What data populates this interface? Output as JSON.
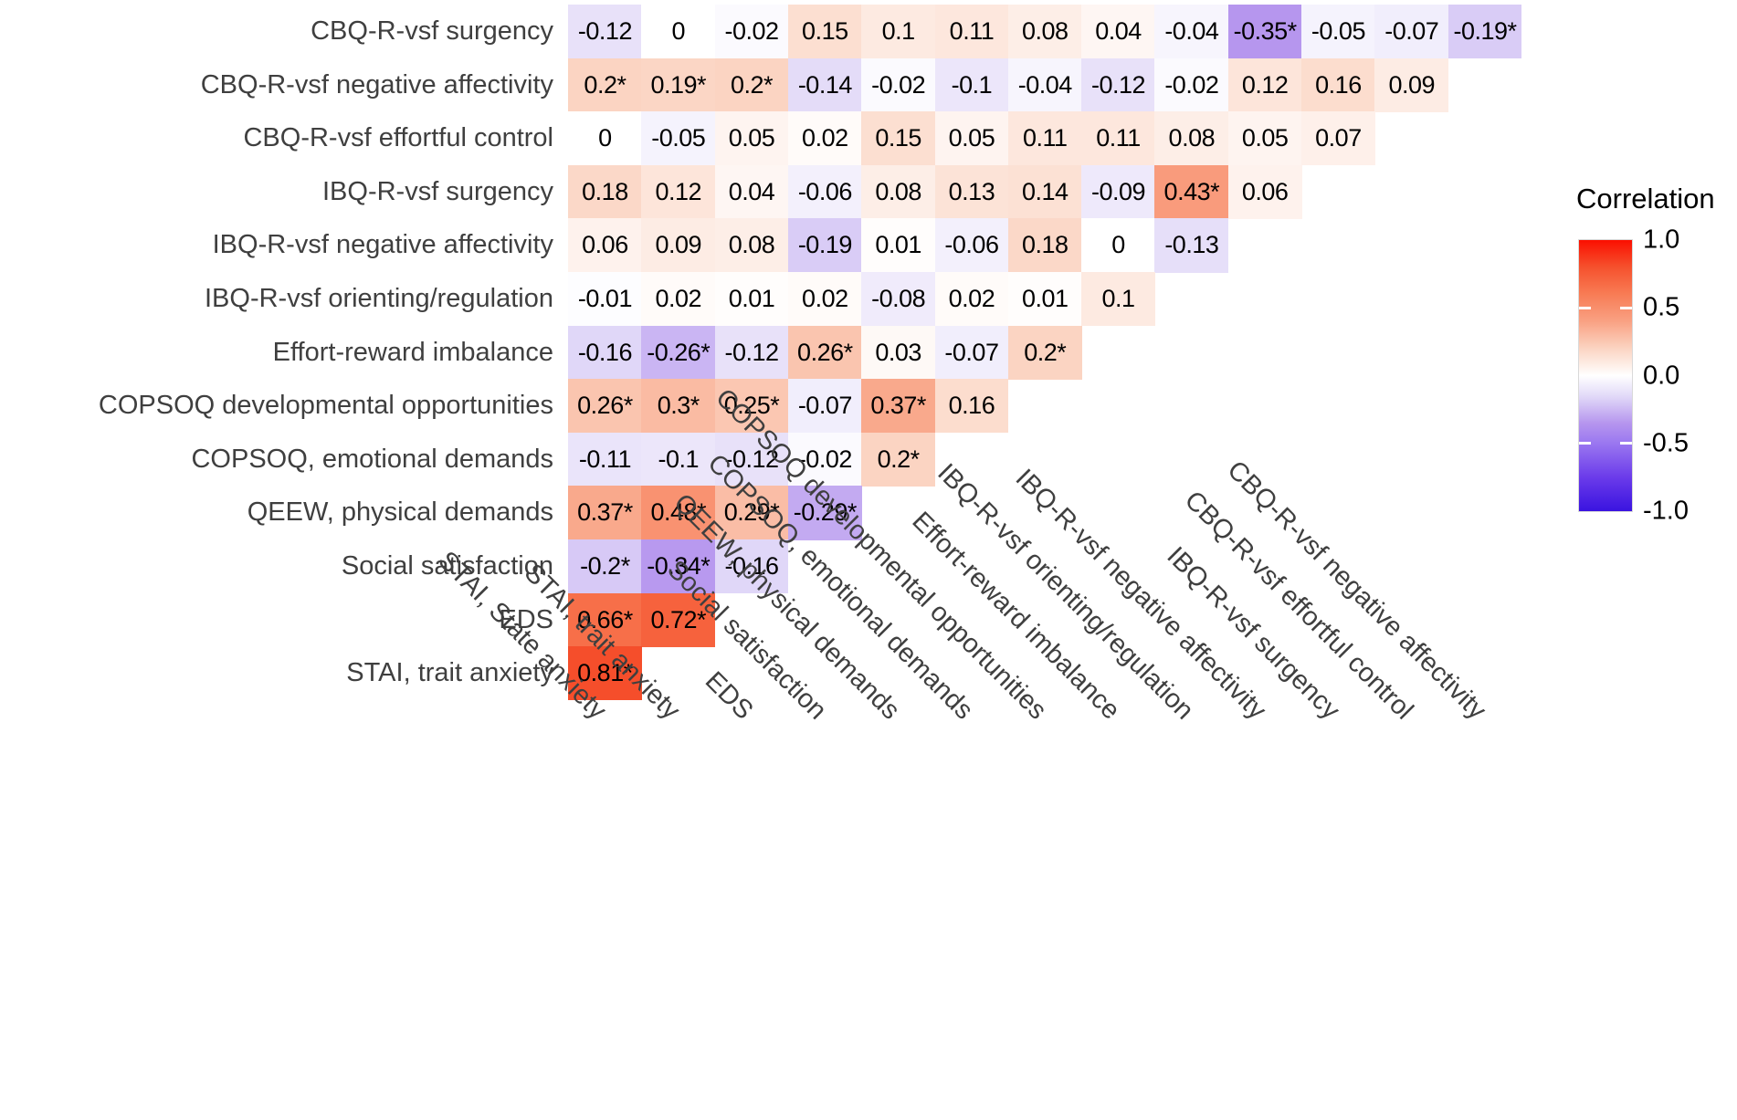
{
  "legend": {
    "title": "Correlation",
    "tick_labels": [
      "1.0",
      "0.5",
      "0.0",
      "-0.5",
      "-1.0"
    ],
    "accent_high": "#fb0f00",
    "accent_zero": "#ffffff",
    "accent_low": "#3a13e0"
  },
  "chart_data": {
    "type": "heatmap",
    "subtype": "lower-triangular correlation matrix",
    "colorbar_title": "Correlation",
    "colorbar_range": [
      -1.0,
      1.0
    ],
    "significance_marker": "* denotes values displayed with an asterisk",
    "columns": [
      "STAI, State anxiety",
      "STAI, trait anxiety",
      "EDS",
      "Social satisfaction",
      "QEEW, physical demands",
      "COPSOQ, emotional demands",
      "COPSOQ developmental opportunities",
      "Effort-reward imbalance",
      "IBQ-R-vsf orienting/regulation",
      "IBQ-R-vsf negative affectivity",
      "IBQ-R-vsf surgency",
      "CBQ-R-vsf effortful control",
      "CBQ-R-vsf negative affectivity"
    ],
    "rows": [
      {
        "label": "CBQ-R-vsf surgency",
        "values": [
          "-0.12",
          "0",
          "-0.02",
          "0.15",
          "0.1",
          "0.11",
          "0.08",
          "0.04",
          "-0.04",
          "-0.35*",
          "-0.05",
          "-0.07",
          "-0.19*"
        ]
      },
      {
        "label": "CBQ-R-vsf negative affectivity",
        "values": [
          "0.2*",
          "0.19*",
          "0.2*",
          "-0.14",
          "-0.02",
          "-0.1",
          "-0.04",
          "-0.12",
          "-0.02",
          "0.12",
          "0.16",
          "0.09"
        ]
      },
      {
        "label": "CBQ-R-vsf effortful control",
        "values": [
          "0",
          "-0.05",
          "0.05",
          "0.02",
          "0.15",
          "0.05",
          "0.11",
          "0.11",
          "0.08",
          "0.05",
          "0.07"
        ]
      },
      {
        "label": "IBQ-R-vsf surgency",
        "values": [
          "0.18",
          "0.12",
          "0.04",
          "-0.06",
          "0.08",
          "0.13",
          "0.14",
          "-0.09",
          "0.43*",
          "0.06"
        ]
      },
      {
        "label": "IBQ-R-vsf negative affectivity",
        "values": [
          "0.06",
          "0.09",
          "0.08",
          "-0.19",
          "0.01",
          "-0.06",
          "0.18",
          "0",
          "-0.13"
        ]
      },
      {
        "label": "IBQ-R-vsf orienting/regulation",
        "values": [
          "-0.01",
          "0.02",
          "0.01",
          "0.02",
          "-0.08",
          "0.02",
          "0.01",
          "0.1"
        ]
      },
      {
        "label": "Effort-reward imbalance",
        "values": [
          "-0.16",
          "-0.26*",
          "-0.12",
          "0.26*",
          "0.03",
          "-0.07",
          "0.2*"
        ]
      },
      {
        "label": "COPSOQ developmental opportunities",
        "values": [
          "0.26*",
          "0.3*",
          "0.25*",
          "-0.07",
          "0.37*",
          "0.16"
        ]
      },
      {
        "label": "COPSOQ, emotional demands",
        "values": [
          "-0.11",
          "-0.1",
          "-0.12",
          "-0.02",
          "0.2*"
        ]
      },
      {
        "label": "QEEW, physical demands",
        "values": [
          "0.37*",
          "0.48*",
          "0.29*",
          "-0.29*"
        ]
      },
      {
        "label": "Social satisfaction",
        "values": [
          "-0.2*",
          "-0.34*",
          "-0.16"
        ]
      },
      {
        "label": "EDS",
        "values": [
          "0.66*",
          "0.72*"
        ]
      },
      {
        "label": "STAI, trait anxiety",
        "values": [
          "0.81*"
        ]
      }
    ],
    "color_stops": [
      [
        1.0,
        "#fb0f00"
      ],
      [
        0.8,
        "#f5512d"
      ],
      [
        0.6,
        "#f87c55"
      ],
      [
        0.4,
        "#f9a183"
      ],
      [
        0.2,
        "#fbd4c2"
      ],
      [
        0.0,
        "#ffffff"
      ],
      [
        -0.15,
        "#e2daf8"
      ],
      [
        -0.35,
        "#b696ee"
      ],
      [
        -0.5,
        "#9a77f0"
      ],
      [
        -0.75,
        "#6b3bea"
      ],
      [
        -1.0,
        "#3a13e0"
      ]
    ]
  }
}
